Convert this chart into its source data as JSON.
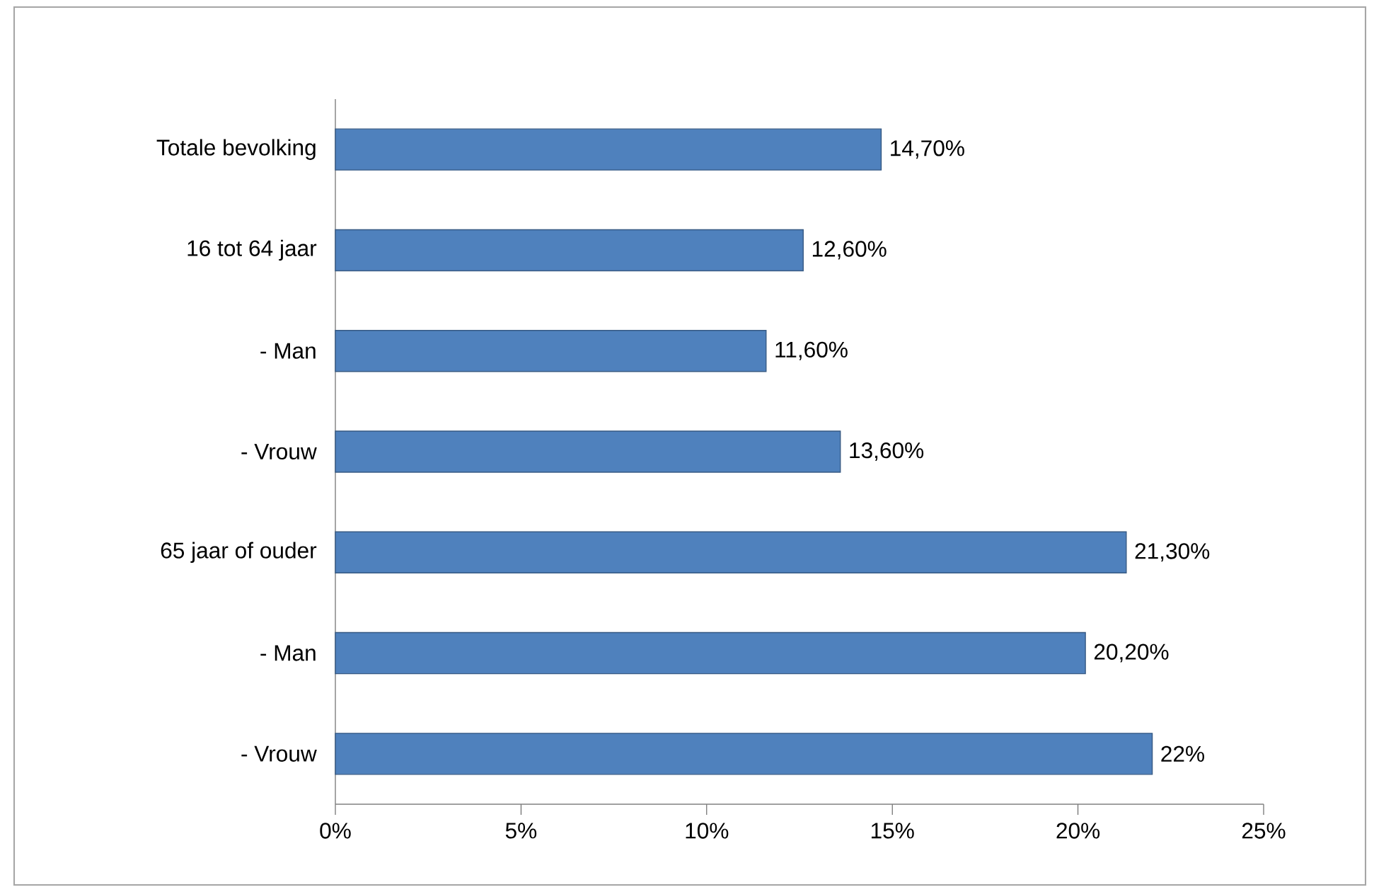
{
  "chart_data": {
    "type": "bar",
    "orientation": "horizontal",
    "categories": [
      "Totale bevolking",
      "16 tot 64 jaar",
      "- Man",
      "- Vrouw",
      "65 jaar of ouder",
      "- Man",
      "- Vrouw"
    ],
    "values": [
      14.7,
      12.6,
      11.6,
      13.6,
      21.3,
      20.2,
      22
    ],
    "value_labels": [
      "14,70%",
      "12,60%",
      "11,60%",
      "13,60%",
      "21,30%",
      "20,20%",
      "22%"
    ],
    "color": "#4f81bd",
    "xlim": [
      0,
      25
    ],
    "xticks": [
      {
        "value": 0,
        "label": "0%"
      },
      {
        "value": 5,
        "label": "5%"
      },
      {
        "value": 10,
        "label": "10%"
      },
      {
        "value": 15,
        "label": "15%"
      },
      {
        "value": 20,
        "label": "20%"
      },
      {
        "value": 25,
        "label": "25%"
      }
    ],
    "grid": false
  }
}
